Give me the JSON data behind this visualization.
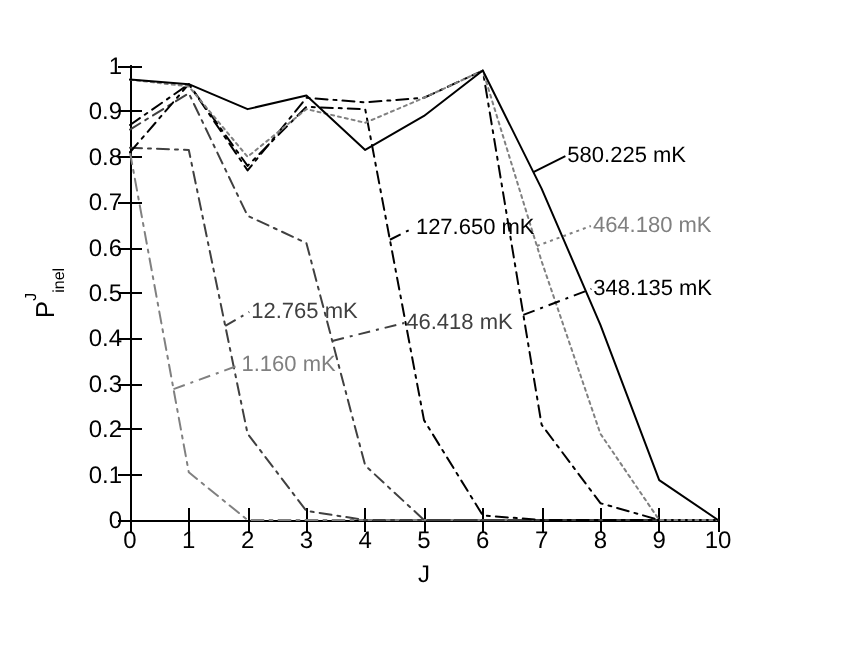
{
  "chart_data": {
    "type": "line",
    "xlabel": "J",
    "ylabel": "P$^{J}$$_{inel}$",
    "x": [
      0,
      1,
      2,
      3,
      4,
      5,
      6,
      7,
      8,
      9,
      10
    ],
    "xlim": [
      0,
      10
    ],
    "xticks": [
      0,
      1,
      2,
      3,
      4,
      5,
      6,
      7,
      8,
      9,
      10
    ],
    "ylim": [
      0,
      1
    ],
    "yticks": [
      0,
      0.1,
      0.2,
      0.3,
      0.4,
      0.5,
      0.6,
      0.7,
      0.8,
      0.9,
      1
    ],
    "grid": false,
    "legend": "right",
    "marker": "none",
    "series": [
      {
        "name": "1.160 mK",
        "color": "#808080",
        "line_style": "dashed",
        "values": [
          0.81,
          0.105,
          0,
          0,
          0,
          0,
          0,
          0,
          0,
          0,
          0
        ]
      },
      {
        "name": "12.765 mK",
        "color": "#404040",
        "line_style": "dashed",
        "values": [
          0.82,
          0.815,
          0.19,
          0.02,
          0,
          0,
          0,
          0,
          0,
          0,
          0
        ]
      },
      {
        "name": "46.418 mK",
        "color": "#404040",
        "line_style": "dashed",
        "values": [
          0.86,
          0.94,
          0.67,
          0.61,
          0.12,
          0,
          0,
          0,
          0,
          0,
          0
        ]
      },
      {
        "name": "127.650 mK",
        "color": "#000000",
        "line_style": "dashed",
        "values": [
          0.87,
          0.96,
          0.78,
          0.91,
          0.905,
          0.22,
          0.01,
          0,
          0,
          0,
          0
        ]
      },
      {
        "name": "348.135 mK",
        "color": "#000000",
        "line_style": "dashed",
        "values": [
          0.81,
          0.96,
          0.77,
          0.93,
          0.92,
          0.93,
          0.99,
          0.21,
          0.037,
          0,
          0
        ]
      },
      {
        "name": "464.180 mK",
        "color": "#808080",
        "line_style": "dotted",
        "values": [
          0.97,
          0.955,
          0.8,
          0.905,
          0.875,
          0.93,
          0.99,
          0.57,
          0.19,
          0,
          0
        ]
      },
      {
        "name": "580.225 mK",
        "color": "#000000",
        "line_style": "solid",
        "values": [
          0.97,
          0.96,
          0.905,
          0.935,
          0.815,
          0.89,
          0.99,
          0.73,
          0.43,
          0.088,
          0
        ]
      }
    ]
  }
}
